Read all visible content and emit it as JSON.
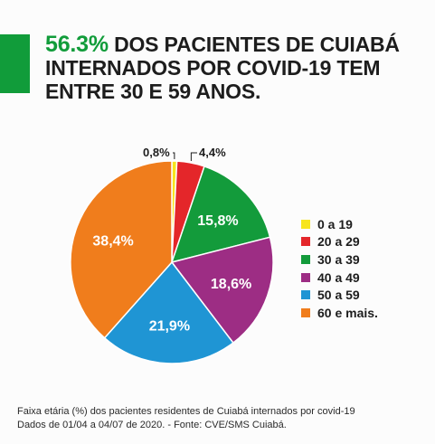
{
  "headline": {
    "highlight": "56.3%",
    "text": " DOS PACIENTES DE CUIABÁ INTERNADOS POR COVID-19 TEM ENTRE 30 E 59 ANOS."
  },
  "chart_data": {
    "type": "pie",
    "categories": [
      "0 a 19",
      "20 a 29",
      "30 a 39",
      "40 a 49",
      "50 a 59",
      "60 e mais."
    ],
    "values": [
      0.8,
      4.4,
      15.8,
      18.6,
      21.9,
      38.4
    ],
    "value_labels": [
      "0,8%",
      "4,4%",
      "15,8%",
      "18,6%",
      "21,9%",
      "38,4%"
    ],
    "colors": [
      "#f7e51d",
      "#e4262a",
      "#139b3b",
      "#9d2d84",
      "#1f95d4",
      "#f07d1c"
    ],
    "start_angle_deg": 0,
    "direction": "clockwise",
    "legend_position": "right"
  },
  "footnote": {
    "line1": "Faixa etária (%) dos pacientes residentes de Cuiabá internados por covid-19",
    "line2": "Dados de 01/04 a 04/07 de 2020. - Fonte: CVE/SMS Cuiabá."
  }
}
